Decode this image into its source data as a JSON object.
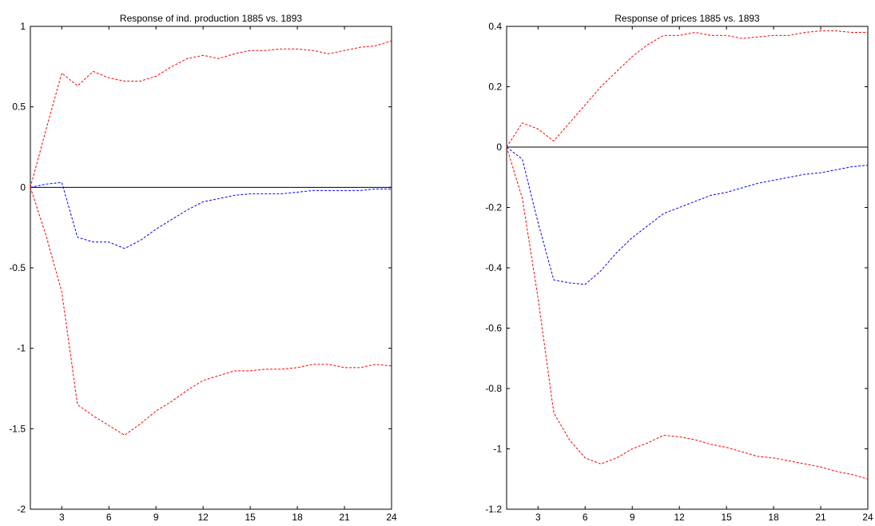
{
  "chart_data": [
    {
      "type": "line",
      "title": "Response of ind. production 1885 vs. 1893",
      "xlabel": "",
      "ylabel": "",
      "xlim": [
        1,
        24
      ],
      "ylim": [
        -2,
        1
      ],
      "xticks": [
        3,
        6,
        9,
        12,
        15,
        18,
        21,
        24
      ],
      "yticks": [
        -2,
        -1.5,
        -1,
        -0.5,
        0,
        0.5,
        1
      ],
      "ytick_labels": [
        "-2",
        "-1.5",
        "-1",
        "-0.5",
        "0",
        "0.5",
        "1"
      ],
      "grid": false,
      "zero_line": {
        "value": 0,
        "color": "#000000"
      },
      "x": [
        1,
        2,
        3,
        4,
        5,
        6,
        7,
        8,
        9,
        10,
        11,
        12,
        13,
        14,
        15,
        16,
        17,
        18,
        19,
        20,
        21,
        22,
        23,
        24
      ],
      "series": [
        {
          "role": "upper",
          "color": "#ff0000",
          "style": "dashed",
          "values": [
            0,
            0.36,
            0.71,
            0.63,
            0.72,
            0.68,
            0.66,
            0.66,
            0.69,
            0.75,
            0.8,
            0.82,
            0.8,
            0.83,
            0.85,
            0.85,
            0.86,
            0.86,
            0.85,
            0.83,
            0.85,
            0.87,
            0.88,
            0.91
          ]
        },
        {
          "role": "point",
          "color": "#0000ff",
          "style": "dashed",
          "values": [
            0,
            0.02,
            0.03,
            -0.31,
            -0.34,
            -0.34,
            -0.38,
            -0.33,
            -0.26,
            -0.2,
            -0.14,
            -0.09,
            -0.07,
            -0.05,
            -0.04,
            -0.04,
            -0.04,
            -0.03,
            -0.02,
            -0.02,
            -0.02,
            -0.02,
            -0.01,
            -0.01
          ]
        },
        {
          "role": "lower",
          "color": "#ff0000",
          "style": "dashed",
          "values": [
            0,
            -0.3,
            -0.65,
            -1.35,
            -1.42,
            -1.48,
            -1.54,
            -1.47,
            -1.39,
            -1.33,
            -1.26,
            -1.2,
            -1.17,
            -1.14,
            -1.14,
            -1.13,
            -1.13,
            -1.12,
            -1.1,
            -1.1,
            -1.12,
            -1.12,
            -1.1,
            -1.11
          ]
        }
      ]
    },
    {
      "type": "line",
      "title": "Response of prices 1885 vs. 1893",
      "xlabel": "",
      "ylabel": "",
      "xlim": [
        1,
        24
      ],
      "ylim": [
        -1.2,
        0.4
      ],
      "xticks": [
        3,
        6,
        9,
        12,
        15,
        18,
        21,
        24
      ],
      "yticks": [
        -1.2,
        -1,
        -0.8,
        -0.6,
        -0.4,
        -0.2,
        0,
        0.2,
        0.4
      ],
      "ytick_labels": [
        "-1.2",
        "-1",
        "-0.8",
        "-0.6",
        "-0.4",
        "-0.2",
        "0",
        "0.2",
        "0.4"
      ],
      "grid": false,
      "zero_line": {
        "value": 0,
        "color": "#000000"
      },
      "x": [
        1,
        2,
        3,
        4,
        5,
        6,
        7,
        8,
        9,
        10,
        11,
        12,
        13,
        14,
        15,
        16,
        17,
        18,
        19,
        20,
        21,
        22,
        23,
        24
      ],
      "series": [
        {
          "role": "upper",
          "color": "#ff0000",
          "style": "dashed",
          "values": [
            0,
            0.08,
            0.06,
            0.02,
            0.08,
            0.14,
            0.2,
            0.25,
            0.3,
            0.34,
            0.37,
            0.37,
            0.38,
            0.37,
            0.37,
            0.36,
            0.365,
            0.37,
            0.37,
            0.38,
            0.385,
            0.385,
            0.38,
            0.38
          ]
        },
        {
          "role": "point",
          "color": "#0000ff",
          "style": "dashed",
          "values": [
            0,
            -0.04,
            -0.25,
            -0.44,
            -0.45,
            -0.455,
            -0.41,
            -0.35,
            -0.3,
            -0.26,
            -0.22,
            -0.2,
            -0.18,
            -0.16,
            -0.15,
            -0.135,
            -0.12,
            -0.11,
            -0.1,
            -0.09,
            -0.085,
            -0.075,
            -0.065,
            -0.06
          ]
        },
        {
          "role": "lower",
          "color": "#ff0000",
          "style": "dashed",
          "values": [
            0,
            -0.17,
            -0.5,
            -0.88,
            -0.97,
            -1.03,
            -1.05,
            -1.03,
            -1.0,
            -0.98,
            -0.955,
            -0.96,
            -0.97,
            -0.985,
            -0.995,
            -1.01,
            -1.025,
            -1.03,
            -1.04,
            -1.05,
            -1.06,
            -1.075,
            -1.085,
            -1.1
          ]
        }
      ]
    }
  ]
}
